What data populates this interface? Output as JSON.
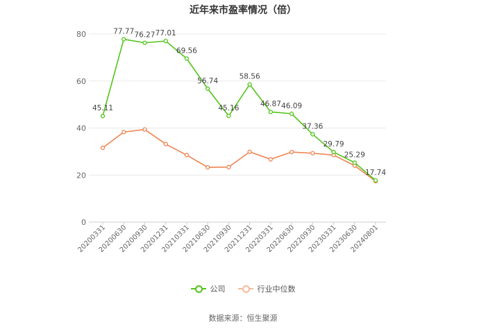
{
  "chart_data": {
    "type": "line",
    "title": "近年来市盈率情况（倍）",
    "categories": [
      "20200331",
      "20200630",
      "20200930",
      "20201231",
      "20210331",
      "20210630",
      "20210930",
      "20211231",
      "20220331",
      "20220630",
      "20220930",
      "20230331",
      "20230630",
      "20240801"
    ],
    "series": [
      {
        "name": "公司",
        "color": "#52c41a",
        "values": [
          45.11,
          77.77,
          76.27,
          77.01,
          69.56,
          56.74,
          45.16,
          58.56,
          46.87,
          46.09,
          37.36,
          29.79,
          25.29,
          17.74
        ]
      },
      {
        "name": "行业中位数",
        "color": "#f08350",
        "values": [
          31.6,
          38.3,
          39.4,
          33.2,
          28.5,
          23.3,
          23.4,
          29.9,
          26.7,
          29.8,
          29.3,
          28.5,
          24.0,
          17.4
        ]
      }
    ],
    "yticks": [
      0,
      20,
      40,
      60,
      80
    ],
    "ylim": [
      0,
      80
    ],
    "grid": true,
    "legend_position": "bottom",
    "data_labels": [
      {
        "label": "45.11"
      },
      {
        "label": "77.77"
      },
      {
        "label": "76.27"
      },
      {
        "label": "77.01"
      },
      {
        "label": "69.56"
      },
      {
        "label": "56.74"
      },
      {
        "label": "45.16"
      },
      {
        "label": "58.56"
      },
      {
        "label": "46.87"
      },
      {
        "label": "46.09"
      },
      {
        "label": "37.36"
      },
      {
        "label": "29.79"
      },
      {
        "label": "25.29"
      },
      {
        "label": "17.74"
      }
    ],
    "source": "数据来源：恒生聚源"
  }
}
